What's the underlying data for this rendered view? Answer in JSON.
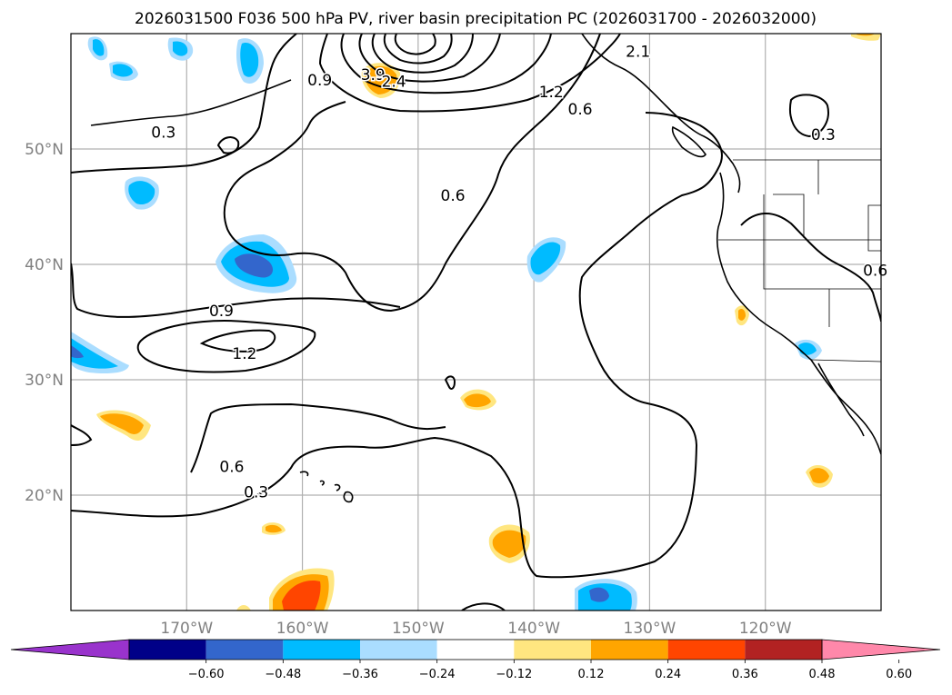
{
  "title": "2026031500 F036 500 hPa PV, river basin precipitation PC (2026031700 - 2026032000)",
  "map": {
    "lon_range": [
      -180,
      -110
    ],
    "lat_range": [
      10,
      60
    ],
    "lon_ticks": [
      {
        "lon": -170,
        "label": "170°W"
      },
      {
        "lon": -160,
        "label": "160°W"
      },
      {
        "lon": -150,
        "label": "150°W"
      },
      {
        "lon": -140,
        "label": "140°W"
      },
      {
        "lon": -130,
        "label": "130°W"
      },
      {
        "lon": -120,
        "label": "120°W"
      }
    ],
    "lat_ticks": [
      {
        "lat": 20,
        "label": "20°N"
      },
      {
        "lat": 30,
        "label": "30°N"
      },
      {
        "lat": 40,
        "label": "40°N"
      },
      {
        "lat": 50,
        "label": "50°N"
      }
    ],
    "gridlines": true
  },
  "contour_labels": [
    {
      "text": "0.3",
      "lon": -172,
      "lat": 51
    },
    {
      "text": "0.9",
      "lon": -158.5,
      "lat": 55.5
    },
    {
      "text": "2.1",
      "lon": -131,
      "lat": 58
    },
    {
      "text": "3.9",
      "lon": -153.9,
      "lat": 56
    },
    {
      "text": "2.4",
      "lon": -152.1,
      "lat": 55.4
    },
    {
      "text": "1.2",
      "lon": -138.5,
      "lat": 54.5
    },
    {
      "text": "0.6",
      "lon": -136,
      "lat": 53
    },
    {
      "text": "0.6",
      "lon": -147,
      "lat": 45.5
    },
    {
      "text": "0.3",
      "lon": -115,
      "lat": 50.8
    },
    {
      "text": "0.6",
      "lon": -110.5,
      "lat": 39
    },
    {
      "text": "0.9",
      "lon": -167,
      "lat": 35.5
    },
    {
      "text": "1.2",
      "lon": -165,
      "lat": 31.8
    },
    {
      "text": "0.6",
      "lon": -166.1,
      "lat": 22
    },
    {
      "text": "0.3",
      "lon": -164,
      "lat": 19.8
    }
  ],
  "colorbar": {
    "colors": [
      "#9933cc",
      "#000088",
      "#3366cc",
      "#00bbff",
      "#aaddff",
      "#ffffff",
      "#ffe680",
      "#ffa500",
      "#ff4500",
      "#b22222",
      "#ff88aa"
    ],
    "tick_labels": [
      "−0.60",
      "−0.48",
      "−0.36",
      "−0.24",
      "−0.12",
      "0.12",
      "0.24",
      "0.36",
      "0.48",
      "0.60"
    ],
    "extend": "both"
  }
}
